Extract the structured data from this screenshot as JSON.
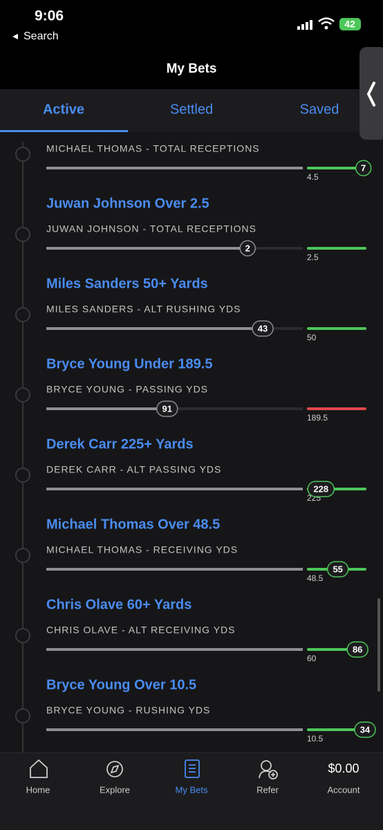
{
  "status_bar": {
    "time": "9:06",
    "back": "Search",
    "battery": "42"
  },
  "header": {
    "title": "My Bets"
  },
  "tabs": [
    "Active",
    "Settled",
    "Saved"
  ],
  "bets": [
    {
      "subtitle": "MICHAEL THOMAS - TOTAL RECEPTIONS",
      "value": 7,
      "line": 4.5,
      "color": "#4cc75a"
    },
    {
      "title": "Juwan Johnson Over 2.5",
      "subtitle": "JUWAN JOHNSON - TOTAL RECEPTIONS",
      "value": 2,
      "line": 2.5,
      "color": "#4cc75a"
    },
    {
      "title": "Miles Sanders 50+ Yards",
      "subtitle": "MILES SANDERS - ALT RUSHING YDS",
      "value": 43,
      "line": 50,
      "color": "#4cc75a"
    },
    {
      "title": "Bryce Young Under 189.5",
      "subtitle": "BRYCE YOUNG - PASSING YDS",
      "value": 91,
      "line": 189.5,
      "color": "#e0484e"
    },
    {
      "title": "Derek Carr 225+ Yards",
      "subtitle": "DEREK CARR - ALT PASSING YDS",
      "value": 228,
      "line": 225,
      "color": "#4cc75a"
    },
    {
      "title": "Michael Thomas Over 48.5",
      "subtitle": "MICHAEL THOMAS - RECEIVING YDS",
      "value": 55,
      "line": 48.5,
      "color": "#4cc75a"
    },
    {
      "title": "Chris Olave 60+ Yards",
      "subtitle": "CHRIS OLAVE - ALT RECEIVING YDS",
      "value": 86,
      "line": 60,
      "color": "#4cc75a"
    },
    {
      "title": "Bryce Young Over 10.5",
      "subtitle": "BRYCE YOUNG - RUSHING YDS",
      "value": 34,
      "line": 10.5,
      "color": "#4cc75a"
    }
  ],
  "nav": {
    "items": [
      "Home",
      "Explore",
      "My Bets",
      "Refer"
    ],
    "balance": "$0.00",
    "account": "Account"
  }
}
